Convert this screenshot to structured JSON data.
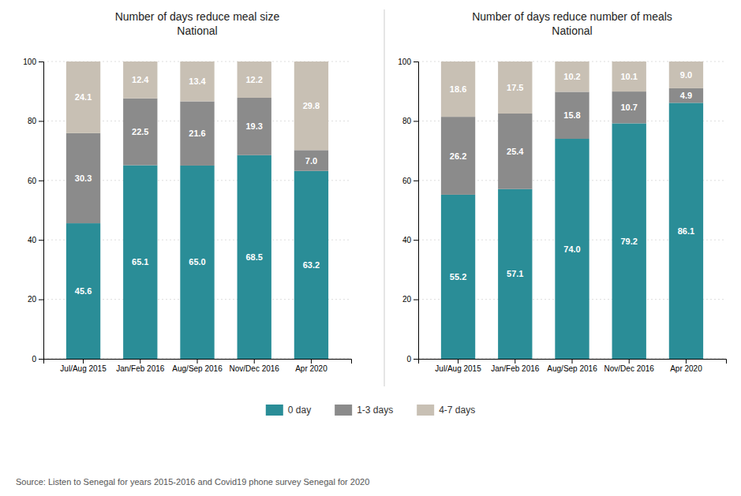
{
  "chart_data": [
    {
      "type": "bar",
      "title": "Number of days reduce meal size\nNational",
      "categories": [
        "Jul/Aug 2015",
        "Jan/Feb 2016",
        "Aug/Sep 2016",
        "Nov/Dec 2016",
        "Apr 2020"
      ],
      "series": [
        {
          "name": "0 day",
          "color": "#2a8d97",
          "values": [
            45.6,
            65.1,
            65.0,
            68.5,
            63.2
          ],
          "value_labels": [
            "45.6",
            "65.1",
            "65.0",
            "68.5",
            "63.2"
          ]
        },
        {
          "name": "1-3 days",
          "color": "#8b8b8b",
          "values": [
            30.3,
            22.5,
            21.6,
            19.3,
            7.0
          ],
          "value_labels": [
            "30.3",
            "22.5",
            "21.6",
            "19.3",
            "7.0"
          ]
        },
        {
          "name": "4-7 days",
          "color": "#c8c0b4",
          "values": [
            24.1,
            12.4,
            13.4,
            12.2,
            29.8
          ],
          "value_labels": [
            "24.1",
            "12.4",
            "13.4",
            "12.2",
            "29.8"
          ]
        }
      ],
      "ylim": [
        0,
        100
      ],
      "yticks": [
        0,
        20,
        40,
        60,
        80,
        100
      ],
      "stacked": true,
      "data_labels": true,
      "grid": true,
      "legend": "bottom",
      "annotations": [
        "Source: Listen to Senegal for years 2015-2016 and Covid19 phone survey Senegal for 2020"
      ]
    },
    {
      "type": "bar",
      "title": "Number of days reduce number of meals\nNational",
      "categories": [
        "Jul/Aug 2015",
        "Jan/Feb 2016",
        "Aug/Sep 2016",
        "Nov/Dec 2016",
        "Apr 2020"
      ],
      "series": [
        {
          "name": "0 day",
          "color": "#2a8d97",
          "values": [
            55.2,
            57.1,
            74.0,
            79.2,
            86.1
          ],
          "value_labels": [
            "55.2",
            "57.1",
            "74.0",
            "79.2",
            "86.1"
          ]
        },
        {
          "name": "1-3 days",
          "color": "#8b8b8b",
          "values": [
            26.2,
            25.4,
            15.8,
            10.7,
            4.9
          ],
          "value_labels": [
            "26.2",
            "25.4",
            "15.8",
            "10.7",
            "4.9"
          ]
        },
        {
          "name": "4-7 days",
          "color": "#c8c0b4",
          "values": [
            18.6,
            17.5,
            10.2,
            10.1,
            9.0
          ],
          "value_labels": [
            "18.6",
            "17.5",
            "10.2",
            "10.1",
            "9.0"
          ]
        }
      ],
      "ylim": [
        0,
        100
      ],
      "yticks": [
        0,
        20,
        40,
        60,
        80,
        100
      ],
      "stacked": true,
      "data_labels": true,
      "grid": true
    }
  ]
}
